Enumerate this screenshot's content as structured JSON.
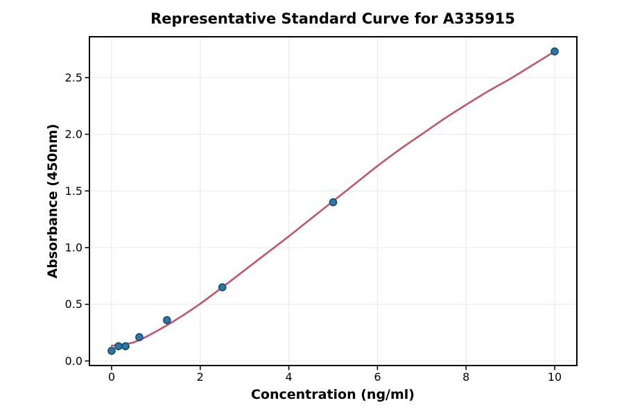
{
  "chart_data": {
    "type": "scatter",
    "title": "Representative Standard Curve for A335915",
    "xlabel": "Concentration (ng/ml)",
    "ylabel": "Absorbance (450nm)",
    "xlim": [
      -0.5,
      10.5
    ],
    "ylim": [
      -0.04,
      2.86
    ],
    "x_ticks": [
      0,
      2,
      4,
      6,
      8,
      10
    ],
    "x_tick_labels": [
      "0",
      "2",
      "4",
      "6",
      "8",
      "10"
    ],
    "y_ticks": [
      0,
      0.5,
      1,
      1.5,
      2,
      2.5
    ],
    "y_tick_labels": [
      "0.0",
      "0.5",
      "1.0",
      "1.5",
      "2.0",
      "2.5"
    ],
    "grid": true,
    "legend": "none",
    "series": [
      {
        "name": "fit-curve",
        "type": "line",
        "x": [
          0,
          0.5,
          1,
          1.5,
          2,
          2.5,
          3,
          3.5,
          4,
          4.5,
          5,
          5.5,
          6,
          6.5,
          7,
          7.5,
          8,
          8.5,
          9,
          9.5,
          10
        ],
        "y": [
          0.135,
          0.165,
          0.26,
          0.375,
          0.505,
          0.65,
          0.8,
          0.95,
          1.1,
          1.255,
          1.41,
          1.565,
          1.72,
          1.865,
          2.0,
          2.135,
          2.26,
          2.38,
          2.49,
          2.61,
          2.73
        ],
        "color": "#c25668",
        "line_width": 2.6
      },
      {
        "name": "standard-points",
        "type": "scatter",
        "x": [
          0,
          0.156,
          0.313,
          0.625,
          1.25,
          2.5,
          5,
          10
        ],
        "y": [
          0.09,
          0.13,
          0.13,
          0.21,
          0.36,
          0.65,
          1.4,
          2.73
        ],
        "marker": "circle",
        "marker_fill": "#2b76ad",
        "marker_edge": "#1b4a66"
      }
    ],
    "colors": {
      "background": "#ffffff",
      "grid": "#e8e8e8",
      "spine": "#000000",
      "text": "#000000"
    }
  }
}
